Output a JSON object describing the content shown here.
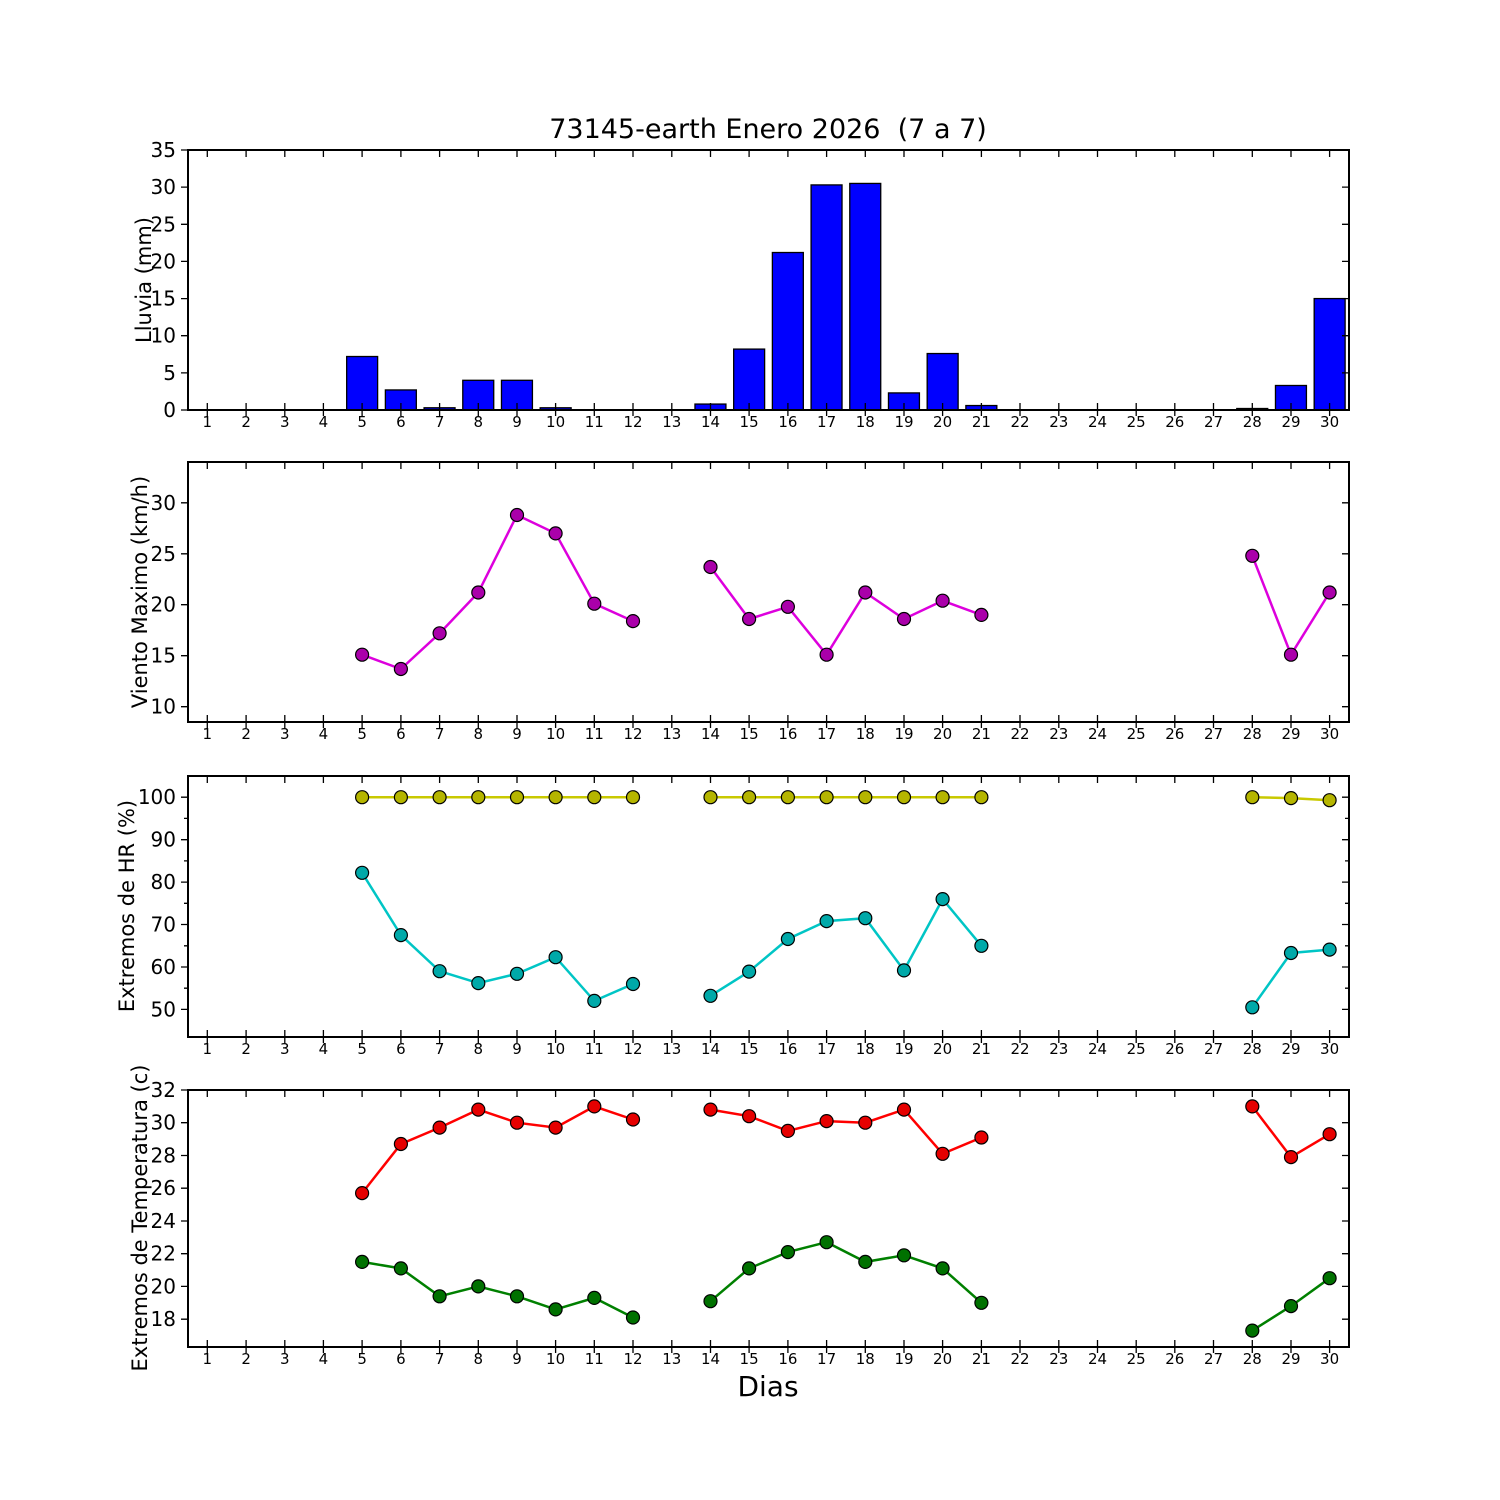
{
  "figure": {
    "title": "73145-earth Enero 2026  (7 a 7)",
    "xlabel": "Dias",
    "background": "#ffffff",
    "frame_color": "#000000"
  },
  "x_axis": {
    "label": "Dias",
    "lim": [
      0.5,
      30.5
    ],
    "ticks": [
      1,
      2,
      3,
      4,
      5,
      6,
      7,
      8,
      9,
      10,
      11,
      12,
      13,
      14,
      15,
      16,
      17,
      18,
      19,
      20,
      21,
      22,
      23,
      24,
      25,
      26,
      27,
      28,
      29,
      30
    ]
  },
  "chart_data": [
    {
      "name": "lluvia",
      "type": "bar",
      "ylabel": "Lluvia (mm)",
      "ylim": [
        0,
        35
      ],
      "yticks": [
        0,
        5,
        10,
        15,
        20,
        25,
        30,
        35
      ],
      "bar_color": "#0000ff",
      "values": [
        0,
        0,
        0,
        0,
        7.2,
        2.7,
        0.3,
        4,
        4,
        0.3,
        0,
        0,
        0,
        0.8,
        8.2,
        21.2,
        30.3,
        30.5,
        2.3,
        7.6,
        0.6,
        0,
        0,
        0,
        0,
        0,
        0,
        0.2,
        3.3,
        15
      ]
    },
    {
      "name": "viento",
      "type": "line",
      "ylabel": "Viento Maximo (km/h)",
      "ylim": [
        8.5,
        34
      ],
      "yticks": [
        10,
        15,
        20,
        25,
        30
      ],
      "series": [
        {
          "name": "viento-maximo",
          "color": "#dd00dd",
          "marker_color": "#aa00aa",
          "values": [
            null,
            null,
            null,
            null,
            15.1,
            13.7,
            17.2,
            21.2,
            28.8,
            27,
            20.1,
            18.4,
            null,
            23.7,
            18.6,
            19.8,
            15.1,
            21.2,
            18.6,
            20.4,
            19,
            null,
            null,
            null,
            null,
            null,
            null,
            24.8,
            15.1,
            21.2
          ]
        }
      ]
    },
    {
      "name": "hr",
      "type": "line",
      "ylabel": "Extremos de HR (%)",
      "ylim": [
        43.5,
        105
      ],
      "yticks": [
        50,
        60,
        70,
        80,
        90,
        100
      ],
      "yticks_minor": [
        55,
        65,
        75,
        85,
        95
      ],
      "series": [
        {
          "name": "hr-max",
          "color": "#c9c900",
          "marker_color": "#b5b500",
          "values": [
            null,
            null,
            null,
            null,
            100,
            100,
            100,
            100,
            100,
            100,
            100,
            100,
            null,
            100,
            100,
            100,
            100,
            100,
            100,
            100,
            100,
            null,
            null,
            null,
            null,
            null,
            null,
            100,
            99.8,
            99.3
          ]
        },
        {
          "name": "hr-min",
          "color": "#00c5c5",
          "marker_color": "#00a9a9",
          "values": [
            null,
            null,
            null,
            null,
            82.2,
            67.5,
            59,
            56.2,
            58.4,
            62.3,
            52,
            56,
            null,
            53.2,
            58.9,
            66.6,
            70.8,
            71.5,
            59.2,
            76,
            65,
            null,
            null,
            null,
            null,
            null,
            null,
            50.5,
            63.3,
            64.1
          ]
        }
      ]
    },
    {
      "name": "temperatura",
      "type": "line",
      "ylabel": "Extremos de Temperatura (c)",
      "ylim": [
        16.3,
        32
      ],
      "yticks": [
        18,
        20,
        22,
        24,
        26,
        28,
        30,
        32
      ],
      "series": [
        {
          "name": "temp-max",
          "color": "#ff0000",
          "marker_color": "#e60000",
          "values": [
            null,
            null,
            null,
            null,
            25.7,
            28.7,
            29.7,
            30.8,
            30,
            29.7,
            31,
            30.2,
            null,
            30.8,
            30.4,
            29.5,
            30.1,
            30,
            30.8,
            28.1,
            29.1,
            null,
            null,
            null,
            null,
            null,
            null,
            31,
            27.9,
            29.3
          ]
        },
        {
          "name": "temp-min",
          "color": "#008000",
          "marker_color": "#007100",
          "values": [
            null,
            null,
            null,
            null,
            21.5,
            21.1,
            19.4,
            20,
            19.4,
            18.6,
            19.3,
            18.1,
            null,
            19.1,
            21.1,
            22.1,
            22.7,
            21.5,
            21.9,
            21.1,
            19,
            null,
            null,
            null,
            null,
            null,
            null,
            17.3,
            18.8,
            20.5
          ]
        }
      ]
    }
  ]
}
